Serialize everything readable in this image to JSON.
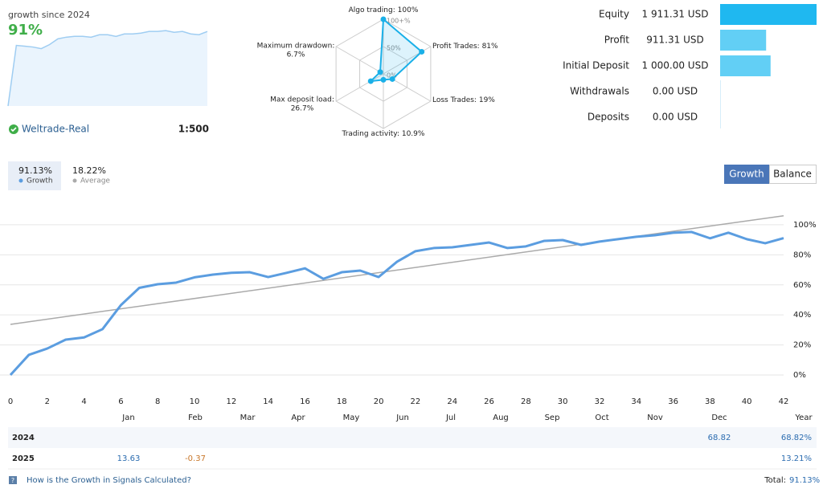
{
  "summary": {
    "title": "growth since 2024",
    "growth": "91%",
    "account": "Weltrade-Real",
    "leverage": "1:500"
  },
  "chart_data": [
    {
      "type": "area",
      "values": [
        0,
        74,
        73,
        72,
        70,
        75,
        82,
        84,
        85,
        85,
        84,
        87,
        87,
        85,
        88,
        88,
        89,
        91,
        91,
        92,
        90,
        91,
        88,
        87,
        91
      ],
      "ylim": [
        0,
        100
      ],
      "color": "#9fcdf2"
    },
    {
      "type": "radar",
      "categories": [
        "Algo trading:",
        "Profit Trades:",
        "Loss Trades:",
        "Trading activity:",
        "Max deposit load:",
        "Maximum drawdown:"
      ],
      "values": [
        100,
        81,
        19,
        10.9,
        26.7,
        6.7
      ],
      "value_labels": [
        "100%",
        "81%",
        "19%",
        "10.9%",
        "26.7%",
        "6.7%"
      ],
      "ylim": [
        0,
        100
      ],
      "yticks": [
        {
          "value": 0,
          "label": "0%"
        },
        {
          "value": 50,
          "label": "50%"
        },
        {
          "value": 100,
          "label": "100+%"
        }
      ],
      "color": "#1ab0e8"
    },
    {
      "type": "hbar",
      "categories": [
        "Equity",
        "Profit",
        "Initial Deposit",
        "Withdrawals",
        "Deposits"
      ],
      "values": [
        1911.31,
        911.31,
        1000,
        0,
        0
      ],
      "value_labels": [
        "1 911.31 USD",
        "911.31 USD",
        "1 000.00 USD",
        "0.00 USD",
        "0.00 USD"
      ],
      "colors": [
        "#1fb8f0",
        "#62cff5",
        "#62cff5",
        "#a8e0f8",
        "#a8e0f8"
      ],
      "xlim": [
        0,
        1911.31
      ]
    },
    {
      "type": "line",
      "view_buttons": [
        "Growth",
        "Balance"
      ],
      "xlim": [
        0,
        42
      ],
      "xticks": [
        0,
        2,
        4,
        6,
        8,
        10,
        12,
        14,
        16,
        18,
        20,
        22,
        24,
        26,
        28,
        30,
        32,
        34,
        36,
        38,
        40,
        42
      ],
      "ylim": [
        -10,
        116
      ],
      "yticks": [
        {
          "value": 0,
          "label": "0%"
        },
        {
          "value": 20,
          "label": "20%"
        },
        {
          "value": 40,
          "label": "40%"
        },
        {
          "value": 60,
          "label": "60%"
        },
        {
          "value": 80,
          "label": "80%"
        },
        {
          "value": 100,
          "label": "100%"
        }
      ],
      "grid": true,
      "series": [
        {
          "name": "Growth",
          "summary": "91.13%",
          "color": "#5b9de0",
          "x": [
            0,
            1,
            2,
            3,
            4,
            5,
            6,
            7,
            8,
            9,
            10,
            11,
            12,
            13,
            14,
            15,
            16,
            17,
            18,
            19,
            20,
            21,
            22,
            23,
            24,
            25,
            26,
            27,
            28,
            29,
            30,
            31,
            32,
            33,
            34,
            35,
            36,
            37,
            38,
            39,
            40,
            41,
            42
          ],
          "values": [
            0,
            13.4,
            17.6,
            23.5,
            25,
            30.5,
            46.5,
            58,
            60.4,
            61.5,
            65,
            66.8,
            68,
            68.4,
            65.2,
            68,
            71,
            64,
            68.4,
            69.5,
            65.2,
            75.4,
            82.4,
            84.5,
            85,
            86.6,
            88.2,
            84.5,
            85.6,
            89.3,
            89.8,
            86.6,
            88.8,
            90.4,
            92,
            93,
            94.7,
            95.2,
            91,
            94.7,
            90.4,
            87.7,
            91.1
          ]
        },
        {
          "name": "Average",
          "summary": "18.22%",
          "color": "#aaaaaa",
          "x": [
            0,
            42
          ],
          "values": [
            33.7,
            106
          ]
        }
      ]
    }
  ],
  "table": {
    "columns": [
      null,
      "Jan",
      "Feb",
      "Mar",
      "Apr",
      "May",
      "Jun",
      "Jul",
      "Aug",
      "Sep",
      "Oct",
      "Nov",
      "Dec",
      "Year"
    ],
    "rows": [
      [
        "2024",
        null,
        null,
        null,
        null,
        null,
        null,
        null,
        null,
        null,
        null,
        null,
        "68.82",
        "68.82%"
      ],
      [
        "2025",
        "13.63",
        "-0.37",
        null,
        null,
        null,
        null,
        null,
        null,
        null,
        null,
        null,
        null,
        "13.21%"
      ]
    ]
  },
  "footer": {
    "link": "How is the Growth in Signals Calculated?",
    "total_label": "Total:",
    "total": "91.13%"
  }
}
